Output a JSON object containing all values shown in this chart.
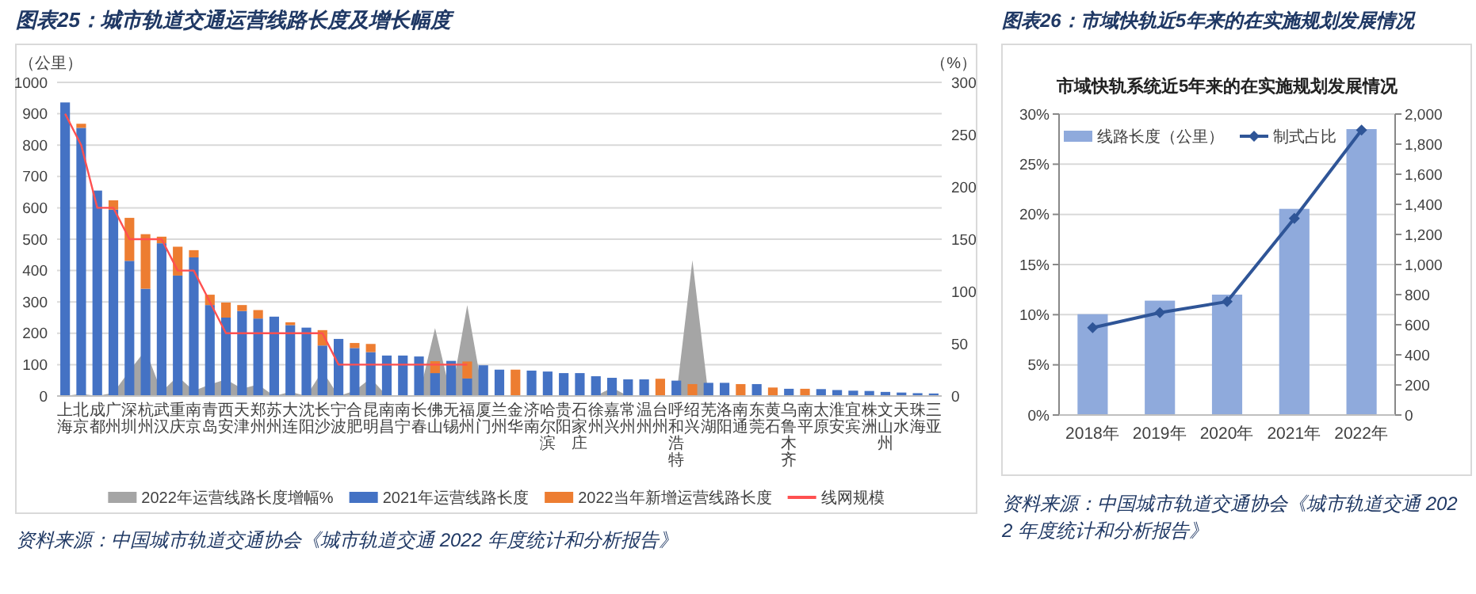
{
  "chart_data": [
    {
      "type": "bar",
      "stacked": true,
      "title": "图表25：城市轨道交通运营线路长度及增长幅度",
      "categories": [
        "上海",
        "北京",
        "成都",
        "广州",
        "深圳",
        "杭州",
        "武汉",
        "重庆",
        "南京",
        "青岛",
        "西安",
        "天津",
        "郑州",
        "苏州",
        "大连",
        "沈阳",
        "长沙",
        "宁波",
        "合肥",
        "昆明",
        "南昌",
        "南宁",
        "长春",
        "佛山",
        "无锡",
        "福州",
        "厦门",
        "兰州",
        "金华",
        "济南",
        "哈尔滨",
        "贵阳",
        "石家庄",
        "徐州",
        "嘉兴",
        "常州",
        "温州",
        "台州",
        "呼和浩特",
        "绍兴",
        "芜湖",
        "洛阳",
        "南通",
        "东莞",
        "黄石",
        "乌鲁木齐",
        "南平",
        "太原",
        "淮安",
        "宜宾",
        "株洲",
        "文山州",
        "天水",
        "珠海",
        "三亚"
      ],
      "series": [
        {
          "name": "2022年运营线路长度增幅%",
          "type": "area",
          "axis": "y2",
          "color": "#a5a5a5",
          "values": [
            0,
            2,
            0,
            3,
            24,
            44,
            4,
            19,
            5,
            11,
            16,
            7,
            11,
            0,
            4,
            0,
            24,
            0,
            5,
            17,
            0,
            0,
            0,
            65,
            0,
            87,
            0,
            0,
            0,
            0,
            0,
            0,
            0,
            0,
            8,
            0,
            0,
            0,
            0,
            130,
            0,
            0,
            0,
            0,
            0,
            0,
            0,
            0,
            0,
            0,
            0,
            0,
            0,
            0,
            0
          ]
        },
        {
          "name": "2021年运营线路长度",
          "color": "#4472c4",
          "values": [
            936,
            855,
            655,
            594,
            431,
            342,
            487,
            384,
            442,
            290,
            250,
            271,
            247,
            253,
            226,
            218,
            161,
            182,
            153,
            140,
            129,
            129,
            126,
            73,
            112,
            56,
            98,
            84,
            null,
            81,
            78,
            73,
            73,
            63,
            58,
            53,
            53,
            null,
            49,
            null,
            42,
            42,
            null,
            38,
            null,
            23,
            null,
            22,
            19,
            17,
            16,
            13,
            11,
            9,
            8
          ]
        },
        {
          "name": "2022当年新增运营线路长度",
          "color": "#ed7d31",
          "values": [
            null,
            13,
            null,
            30,
            137,
            174,
            21,
            92,
            23,
            33,
            48,
            19,
            27,
            null,
            9,
            null,
            49,
            null,
            16,
            26,
            null,
            null,
            null,
            38,
            null,
            54,
            null,
            null,
            84,
            null,
            null,
            null,
            null,
            null,
            null,
            null,
            null,
            55,
            null,
            38,
            null,
            null,
            38,
            null,
            27,
            null,
            23,
            null,
            null,
            null,
            null,
            null,
            null,
            null,
            null
          ]
        },
        {
          "name": "线网规模",
          "type": "line",
          "color": "#ff5050",
          "values": [
            900,
            800,
            600,
            600,
            500,
            500,
            500,
            400,
            400,
            300,
            200,
            200,
            200,
            200,
            200,
            200,
            200,
            100,
            100,
            100,
            100,
            100,
            100,
            100,
            100,
            100,
            null,
            null,
            null,
            null,
            null,
            null,
            null,
            null,
            null,
            null,
            null,
            null,
            null,
            null,
            null,
            null,
            null,
            null,
            null,
            null,
            null,
            null,
            null,
            null,
            null,
            null,
            null,
            null,
            null
          ]
        }
      ],
      "ylabel": "（公里）",
      "y2label": "（%）",
      "ylim": [
        0,
        1000
      ],
      "yticks": [
        0,
        100,
        200,
        300,
        400,
        500,
        600,
        700,
        800,
        900,
        1000
      ],
      "y2lim": [
        0,
        300
      ],
      "y2ticks": [
        0,
        50,
        100,
        150,
        200,
        250,
        300
      ],
      "grid": "y",
      "legend": "bottom",
      "annotations": [
        "资料来源：中国城市轨道交通协会《城市轨道交通 2022 年度统计和分析报告》"
      ]
    },
    {
      "type": "bar",
      "title": "图表26：市域快轨近5年来的在实施规划发展情况",
      "subtitle": "市域快轨系统近5年来的在实施规划发展情况",
      "categories": [
        "2018年",
        "2019年",
        "2020年",
        "2021年",
        "2022年"
      ],
      "series": [
        {
          "name": "线路长度（公里）",
          "axis": "y2",
          "color": "#8faadc",
          "values": [
            670,
            760,
            800,
            1370,
            1900
          ]
        },
        {
          "name": "制式占比",
          "type": "line",
          "color": "#2f5597",
          "values": [
            8.7,
            10.2,
            11.3,
            19.6,
            28.4
          ]
        }
      ],
      "ylim": [
        0,
        30
      ],
      "yticks": [
        {
          "value": 0,
          "label": "0%"
        },
        {
          "value": 5,
          "label": "5%"
        },
        {
          "value": 10,
          "label": "10%"
        },
        {
          "value": 15,
          "label": "15%"
        },
        {
          "value": 20,
          "label": "20%"
        },
        {
          "value": 25,
          "label": "25%"
        },
        {
          "value": 30,
          "label": "30%"
        }
      ],
      "y2lim": [
        0,
        2000
      ],
      "y2ticks": [
        0,
        200,
        400,
        600,
        800,
        {
          "value": 1000,
          "label": "1,000"
        },
        {
          "value": 1200,
          "label": "1,200"
        },
        {
          "value": 1400,
          "label": "1,400"
        },
        {
          "value": 1600,
          "label": "1,600"
        },
        {
          "value": 1800,
          "label": "1,800"
        },
        {
          "value": 2000,
          "label": "2,000"
        }
      ],
      "grid": "y",
      "legend": "top left",
      "marker": "diamond",
      "annotations": [
        "资料来源：中国城市轨道交通协会《城市轨道交通 2022 年度统计和分析报告》"
      ]
    }
  ]
}
